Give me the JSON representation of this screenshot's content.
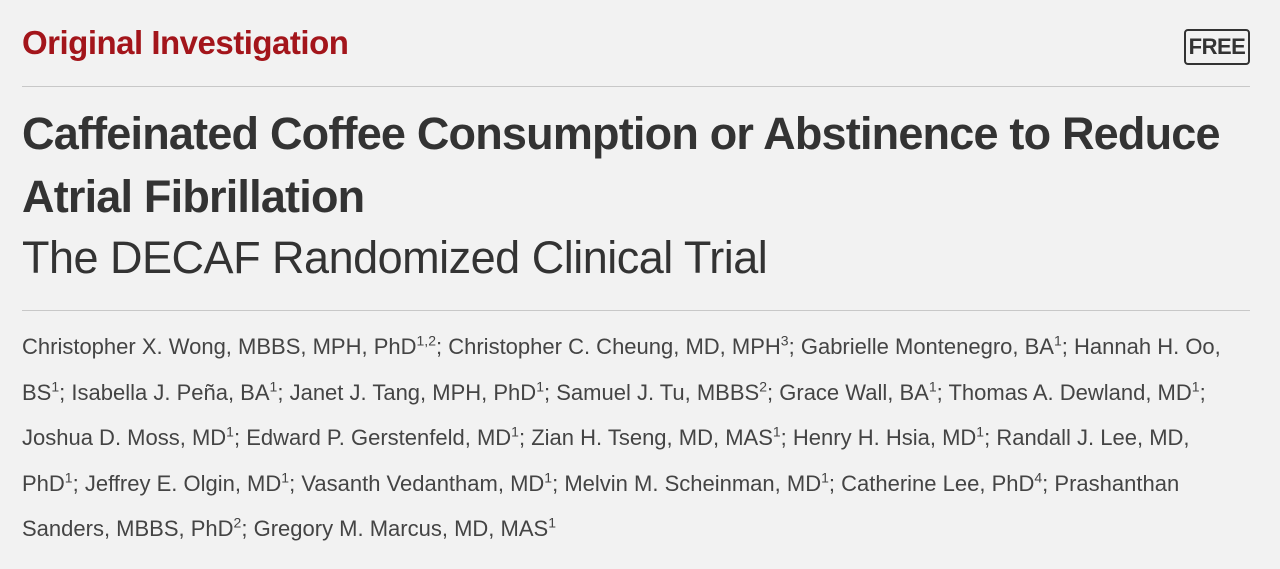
{
  "header": {
    "section": "Original Investigation",
    "badge": "FREE"
  },
  "title": "Caffeinated Coffee Consumption or Abstinence to Reduce Atrial Fibrillation",
  "subtitle": "The DECAF Randomized Clinical Trial",
  "authors": {
    "separator": ";",
    "list": [
      {
        "name": "Christopher X. Wong, MBBS, MPH, PhD",
        "affiliations": "1,2"
      },
      {
        "name": "Christopher C. Cheung, MD, MPH",
        "affiliations": "3"
      },
      {
        "name": "Gabrielle Montenegro, BA",
        "affiliations": "1"
      },
      {
        "name": "Hannah H. Oo, BS",
        "affiliations": "1"
      },
      {
        "name": "Isabella J. Peña, BA",
        "affiliations": "1"
      },
      {
        "name": "Janet J. Tang, MPH, PhD",
        "affiliations": "1"
      },
      {
        "name": "Samuel J. Tu, MBBS",
        "affiliations": "2"
      },
      {
        "name": "Grace Wall, BA",
        "affiliations": "1"
      },
      {
        "name": "Thomas A. Dewland, MD",
        "affiliations": "1"
      },
      {
        "name": "Joshua D. Moss, MD",
        "affiliations": "1"
      },
      {
        "name": "Edward P. Gerstenfeld, MD",
        "affiliations": "1"
      },
      {
        "name": "Zian H. Tseng, MD, MAS",
        "affiliations": "1"
      },
      {
        "name": "Henry H. Hsia, MD",
        "affiliations": "1"
      },
      {
        "name": "Randall J. Lee, MD, PhD",
        "affiliations": "1"
      },
      {
        "name": "Jeffrey E. Olgin, MD",
        "affiliations": "1"
      },
      {
        "name": "Vasanth Vedantham, MD",
        "affiliations": "1"
      },
      {
        "name": "Melvin M. Scheinman, MD",
        "affiliations": "1"
      },
      {
        "name": "Catherine Lee, PhD",
        "affiliations": "4"
      },
      {
        "name": "Prashanthan Sanders, MBBS, PhD",
        "affiliations": "2"
      },
      {
        "name": "Gregory M. Marcus, MD, MAS",
        "affiliations": "1"
      }
    ]
  }
}
